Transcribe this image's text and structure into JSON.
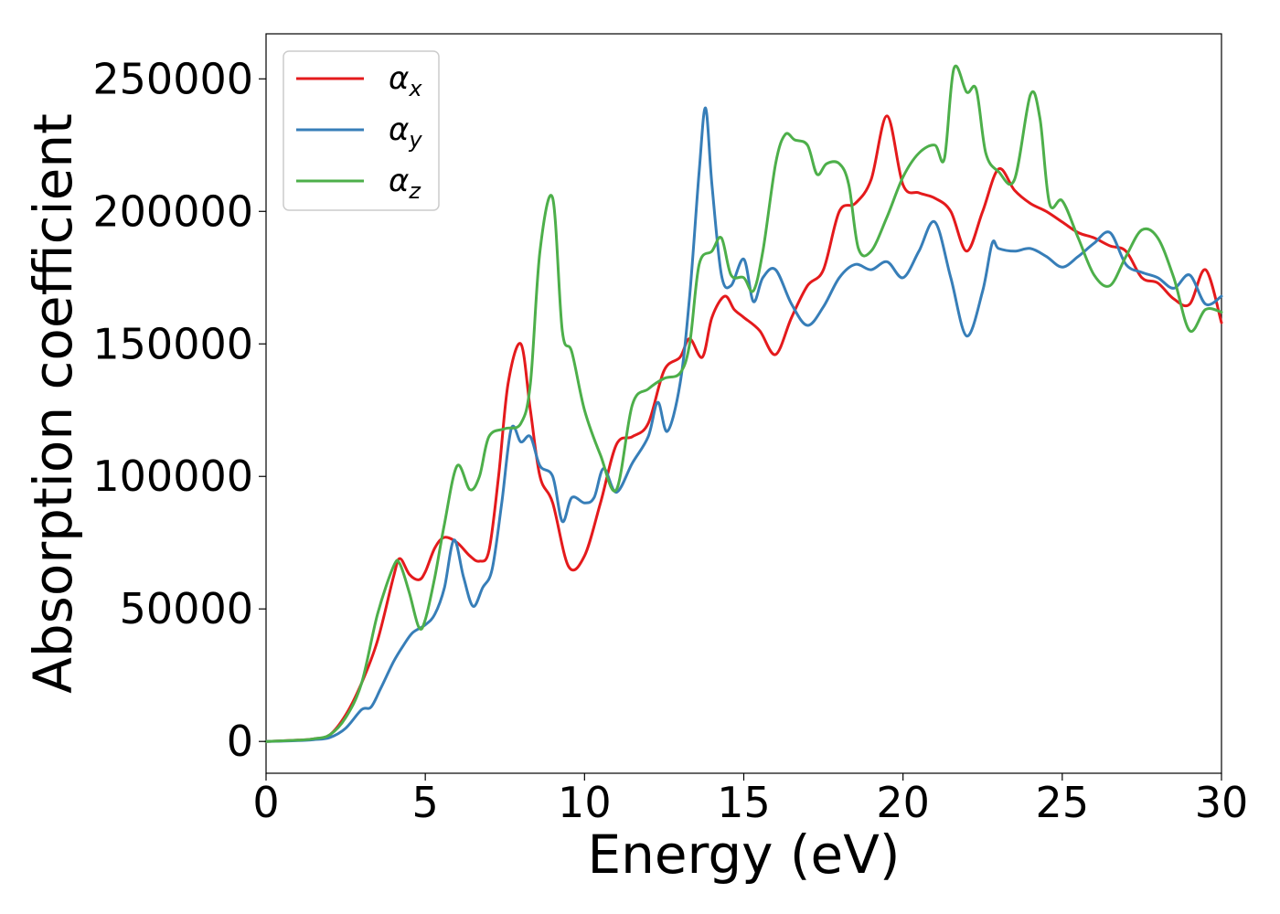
{
  "chart_data": {
    "type": "line",
    "title": "",
    "xlabel": "Energy (eV)",
    "ylabel": "Absorption coefficient",
    "xlim": [
      0,
      30
    ],
    "ylim": [
      -12000,
      267000
    ],
    "xticks": [
      0,
      5,
      10,
      15,
      20,
      25,
      30
    ],
    "xtick_labels": [
      "0",
      "5",
      "10",
      "15",
      "20",
      "25",
      "30"
    ],
    "yticks": [
      0,
      50000,
      100000,
      150000,
      200000,
      250000
    ],
    "ytick_labels": [
      "0",
      "50000",
      "100000",
      "150000",
      "200000",
      "250000"
    ],
    "grid": false,
    "legend_position": "top-left",
    "series": [
      {
        "name": "αx",
        "symbol": "α",
        "subscript": "x",
        "color": "#e41a1c",
        "x": [
          0,
          1,
          1.5,
          2,
          2.5,
          3,
          3.5,
          4,
          4.2,
          4.5,
          4.8,
          5,
          5.3,
          5.6,
          6,
          6.4,
          6.7,
          7,
          7.3,
          7.6,
          8,
          8.3,
          8.6,
          9,
          9.5,
          10,
          10.5,
          11,
          11.5,
          12,
          12.5,
          13,
          13.3,
          13.7,
          14,
          14.4,
          14.7,
          15,
          15.5,
          16,
          16.5,
          17,
          17.5,
          18,
          18.5,
          19,
          19.5,
          20,
          20.5,
          21,
          21.5,
          22,
          22.5,
          23,
          23.5,
          24,
          24.5,
          25,
          25.5,
          26,
          26.5,
          27,
          27.5,
          28,
          28.5,
          29,
          29.5,
          30
        ],
        "values": [
          0,
          500,
          1000,
          2500,
          10000,
          22000,
          38000,
          62000,
          69000,
          63000,
          61000,
          64000,
          73000,
          77000,
          75000,
          70000,
          68000,
          72000,
          100000,
          135000,
          150000,
          125000,
          100000,
          90000,
          66000,
          70000,
          90000,
          112000,
          115000,
          120000,
          140000,
          145000,
          152000,
          145000,
          160000,
          168000,
          163000,
          160000,
          155000,
          146000,
          160000,
          172000,
          178000,
          200000,
          203000,
          212000,
          236000,
          210000,
          207000,
          205000,
          200000,
          185000,
          200000,
          216000,
          208000,
          203000,
          200000,
          196000,
          192000,
          190000,
          187000,
          185000,
          175000,
          173000,
          167000,
          165000,
          178000,
          158000
        ]
      },
      {
        "name": "αy",
        "symbol": "α",
        "subscript": "y",
        "color": "#377eb8",
        "x": [
          0,
          1,
          1.5,
          2,
          2.5,
          3,
          3.3,
          3.6,
          4,
          4.3,
          4.6,
          5,
          5.3,
          5.6,
          5.9,
          6.2,
          6.5,
          6.8,
          7.1,
          7.4,
          7.7,
          8,
          8.3,
          8.6,
          9,
          9.3,
          9.6,
          10,
          10.3,
          10.6,
          11,
          11.5,
          12,
          12.3,
          12.6,
          13,
          13.3,
          13.6,
          13.8,
          14,
          14.3,
          14.6,
          15,
          15.3,
          15.6,
          16,
          16.5,
          17,
          17.5,
          18,
          18.5,
          19,
          19.5,
          20,
          20.5,
          21,
          21.5,
          22,
          22.5,
          22.8,
          23,
          23.5,
          24,
          24.5,
          25,
          25.5,
          26,
          26.5,
          27,
          27.5,
          28,
          28.5,
          29,
          29.5,
          30
        ],
        "values": [
          0,
          300,
          700,
          1500,
          5000,
          12000,
          13000,
          20000,
          30000,
          36000,
          41000,
          44000,
          48000,
          58000,
          76000,
          62000,
          51000,
          58000,
          65000,
          90000,
          118000,
          113000,
          115000,
          104000,
          100000,
          83000,
          92000,
          90000,
          92000,
          103000,
          94000,
          105000,
          115000,
          128000,
          117000,
          135000,
          168000,
          215000,
          239000,
          210000,
          176000,
          172000,
          182000,
          166000,
          175000,
          178000,
          165000,
          157000,
          164000,
          175000,
          180000,
          178000,
          181000,
          175000,
          185000,
          196000,
          175000,
          153000,
          170000,
          188000,
          186000,
          185000,
          186000,
          183000,
          179000,
          183000,
          188000,
          192000,
          180000,
          177000,
          175000,
          171000,
          176000,
          165000,
          168000
        ]
      },
      {
        "name": "αz",
        "symbol": "α",
        "subscript": "z",
        "color": "#4daf4a",
        "x": [
          0,
          1,
          1.5,
          2,
          2.5,
          3,
          3.5,
          4,
          4.2,
          4.5,
          4.8,
          5,
          5.3,
          5.6,
          6,
          6.4,
          6.7,
          7,
          7.5,
          8,
          8.3,
          8.6,
          9,
          9.3,
          9.6,
          10,
          10.5,
          11,
          11.5,
          12,
          12.5,
          13,
          13.3,
          13.6,
          14,
          14.3,
          14.6,
          15,
          15.3,
          15.6,
          16,
          16.3,
          16.6,
          17,
          17.3,
          17.6,
          18,
          18.3,
          18.6,
          19,
          19.5,
          20,
          20.5,
          21,
          21.3,
          21.6,
          22,
          22.3,
          22.6,
          23,
          23.5,
          24,
          24.3,
          24.6,
          25,
          25.5,
          26,
          26.5,
          27,
          27.5,
          28,
          28.5,
          29,
          29.5,
          30
        ],
        "values": [
          0,
          500,
          1000,
          2500,
          9000,
          22000,
          48000,
          66000,
          67000,
          56000,
          43000,
          46000,
          62000,
          82000,
          104000,
          95000,
          100000,
          115000,
          118000,
          120000,
          135000,
          185000,
          205000,
          155000,
          147000,
          125000,
          108000,
          95000,
          127000,
          133000,
          137000,
          139000,
          150000,
          180000,
          185000,
          190000,
          176000,
          175000,
          170000,
          185000,
          218000,
          229000,
          227000,
          225000,
          214000,
          218000,
          218000,
          210000,
          186000,
          185000,
          198000,
          213000,
          222000,
          225000,
          220000,
          254000,
          245000,
          246000,
          222000,
          215000,
          212000,
          244000,
          235000,
          203000,
          204000,
          190000,
          176000,
          172000,
          183000,
          193000,
          190000,
          175000,
          155000,
          163000,
          162000
        ]
      }
    ]
  }
}
